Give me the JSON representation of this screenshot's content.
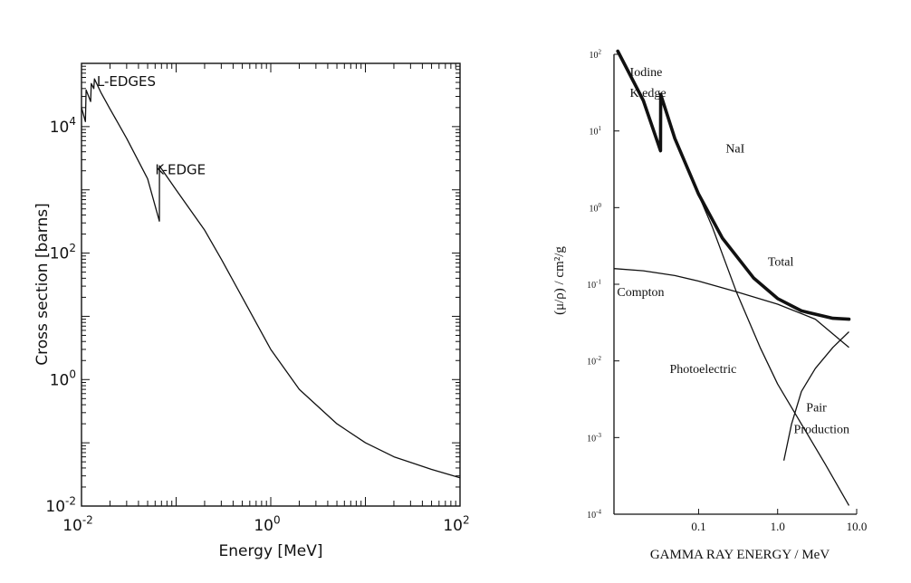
{
  "chart_data": [
    {
      "type": "line",
      "title": "",
      "xlabel": "Energy [MeV]",
      "ylabel": "Cross section [barns]",
      "x_scale": "log",
      "y_scale": "log",
      "xlim": [
        0.01,
        100
      ],
      "ylim": [
        0.01,
        100000
      ],
      "x_ticks": [
        {
          "value": 0.01,
          "mant": "10",
          "exp": "-2"
        },
        {
          "value": 1,
          "mant": "10",
          "exp": "0"
        },
        {
          "value": 100,
          "mant": "10",
          "exp": "2"
        }
      ],
      "y_ticks": [
        {
          "value": 0.01,
          "mant": "10",
          "exp": "-2"
        },
        {
          "value": 1,
          "mant": "10",
          "exp": "0"
        },
        {
          "value": 100,
          "mant": "10",
          "exp": "2"
        },
        {
          "value": 10000,
          "mant": "10",
          "exp": "4"
        }
      ],
      "annotations": [
        {
          "text": "L-EDGES",
          "x": 0.0145,
          "y": 50000
        },
        {
          "text": "K-EDGE",
          "x": 0.06,
          "y": 2000
        }
      ],
      "series": [
        {
          "points": [
            [
              0.01,
              20000
            ],
            [
              0.011,
              12000
            ],
            [
              0.0112,
              38000
            ],
            [
              0.0125,
              25000
            ],
            [
              0.0127,
              48000
            ],
            [
              0.0135,
              40000
            ],
            [
              0.0137,
              57000
            ],
            [
              0.016,
              35000
            ],
            [
              0.02,
              19000
            ],
            [
              0.03,
              6500
            ],
            [
              0.05,
              1500
            ],
            [
              0.0665,
              320
            ],
            [
              0.0667,
              2400
            ],
            [
              0.1,
              1000
            ],
            [
              0.2,
              230
            ],
            [
              0.3,
              80
            ],
            [
              0.5,
              20
            ],
            [
              1,
              3
            ],
            [
              2,
              0.7
            ],
            [
              5,
              0.2
            ],
            [
              10,
              0.1
            ],
            [
              20,
              0.06
            ],
            [
              50,
              0.038
            ],
            [
              100,
              0.028
            ]
          ]
        }
      ]
    },
    {
      "type": "line",
      "title": "",
      "xlabel": "GAMMA RAY ENERGY / MeV",
      "ylabel": "(μ/ρ) / cm²/g",
      "x_scale": "log",
      "y_scale": "log",
      "xlim": [
        0.0085,
        10
      ],
      "ylim": [
        0.0001,
        100
      ],
      "x_ticks": [
        {
          "value": 0.1,
          "label": "0.1"
        },
        {
          "value": 1,
          "label": "1.0"
        },
        {
          "value": 10,
          "label": "10.0"
        }
      ],
      "y_ticks": [
        {
          "value": 100,
          "mant": "10",
          "exp": "2"
        },
        {
          "value": 10,
          "mant": "10",
          "exp": "1"
        },
        {
          "value": 1,
          "mant": "10",
          "exp": "0"
        },
        {
          "value": 0.1,
          "mant": "10",
          "exp": "-1"
        },
        {
          "value": 0.01,
          "mant": "10",
          "exp": "-2"
        },
        {
          "value": 0.001,
          "mant": "10",
          "exp": "-3"
        },
        {
          "value": 0.0001,
          "mant": "10",
          "exp": "-4"
        }
      ],
      "annotations": [
        {
          "text": "Iodine",
          "x": 0.0135,
          "y": 60
        },
        {
          "text": "K  edge",
          "x": 0.0135,
          "y": 32
        },
        {
          "text": "NaI",
          "x": 0.22,
          "y": 6
        },
        {
          "text": "Total",
          "x": 0.75,
          "y": 0.2
        },
        {
          "text": "Compton",
          "x": 0.0093,
          "y": 0.08
        },
        {
          "text": "Photoelectric",
          "x": 0.043,
          "y": 0.008
        },
        {
          "text": "Pair",
          "x": 2.3,
          "y": 0.0025
        },
        {
          "text": "Production",
          "x": 1.6,
          "y": 0.0013
        }
      ],
      "series": [
        {
          "name": "Total",
          "bold": true,
          "points": [
            [
              0.0095,
              110
            ],
            [
              0.02,
              25
            ],
            [
              0.033,
              5.5
            ],
            [
              0.0332,
              30
            ],
            [
              0.05,
              8
            ],
            [
              0.1,
              1.5
            ],
            [
              0.2,
              0.4
            ],
            [
              0.5,
              0.12
            ],
            [
              1,
              0.065
            ],
            [
              2,
              0.045
            ],
            [
              5,
              0.036
            ],
            [
              8,
              0.035
            ]
          ]
        },
        {
          "name": "Compton",
          "bold": false,
          "points": [
            [
              0.0085,
              0.16
            ],
            [
              0.02,
              0.15
            ],
            [
              0.05,
              0.13
            ],
            [
              0.1,
              0.11
            ],
            [
              0.3,
              0.08
            ],
            [
              1,
              0.055
            ],
            [
              3,
              0.035
            ],
            [
              8,
              0.015
            ]
          ]
        },
        {
          "name": "Photoelectric",
          "bold": false,
          "points": [
            [
              0.08,
              2.5
            ],
            [
              0.15,
              0.55
            ],
            [
              0.3,
              0.08
            ],
            [
              0.6,
              0.015
            ],
            [
              1,
              0.005
            ],
            [
              2,
              0.0015
            ],
            [
              4,
              0.00045
            ],
            [
              8,
              0.00013
            ]
          ]
        },
        {
          "name": "Pair Production",
          "bold": false,
          "points": [
            [
              1.2,
              0.0005
            ],
            [
              1.5,
              0.0015
            ],
            [
              2,
              0.004
            ],
            [
              3,
              0.008
            ],
            [
              5,
              0.015
            ],
            [
              8,
              0.024
            ]
          ]
        }
      ]
    }
  ]
}
